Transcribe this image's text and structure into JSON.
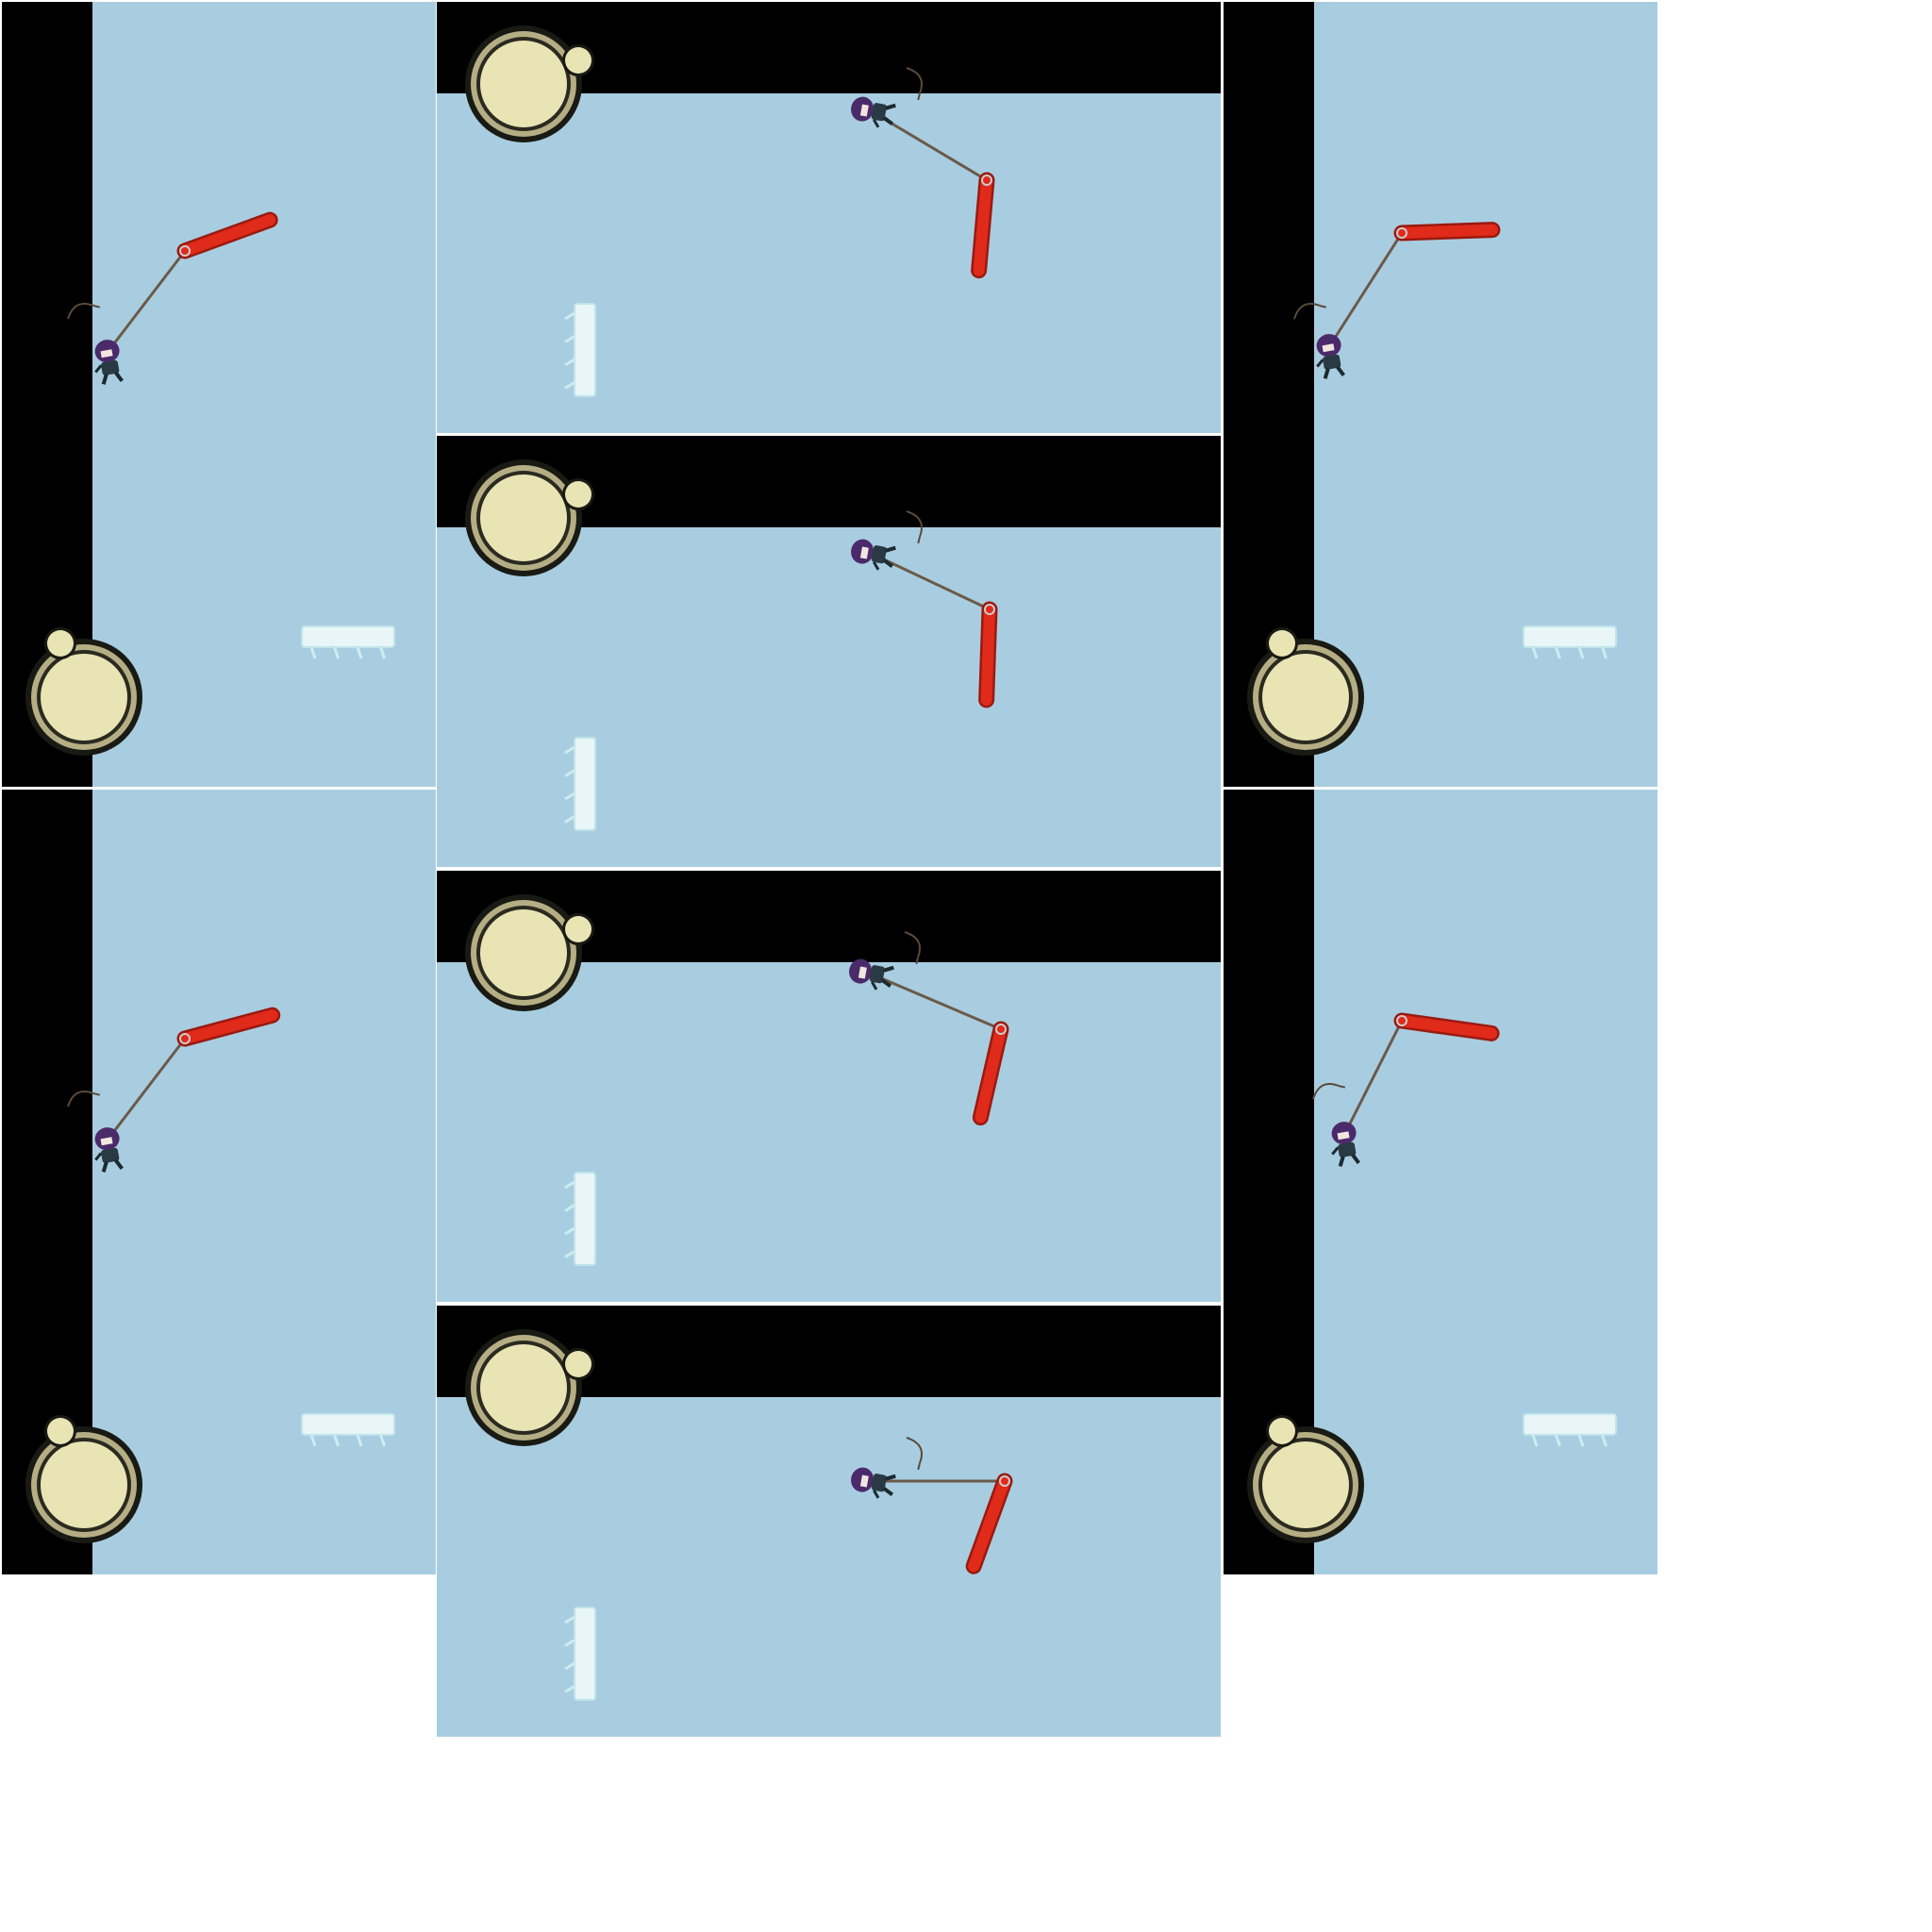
{
  "colors": {
    "sky": "#a9cde0",
    "wall": "#000000",
    "background": "#ffffff",
    "stick": "#e02a1a",
    "rope": "#6a5a4a",
    "disc_fill": "#e8e4b4",
    "disc_ring": "#b5ae84",
    "ice": "#e8f6f8"
  },
  "sprites": {
    "player": "hooded-ninja-character",
    "hook": "grappling-hook-arc",
    "platform": "ice-platform",
    "button": "round-cream-button",
    "bar": "red-stick"
  },
  "frames": [
    {
      "id": "frame-1",
      "stick_angle_deg": -20
    },
    {
      "id": "frame-2",
      "stick_angle_deg": 95
    },
    {
      "id": "frame-3",
      "stick_angle_deg": -2
    },
    {
      "id": "frame-4",
      "stick_angle_deg": 92
    },
    {
      "id": "frame-5",
      "stick_angle_deg": -15
    },
    {
      "id": "frame-6",
      "stick_angle_deg": 103
    },
    {
      "id": "frame-7",
      "stick_angle_deg": 8
    },
    {
      "id": "frame-8",
      "stick_angle_deg": 110
    }
  ]
}
